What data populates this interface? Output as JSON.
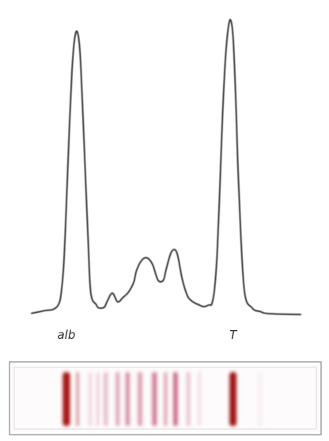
{
  "chart_data": {
    "type": "line",
    "title": "",
    "xlabel": "",
    "ylabel": "",
    "x_range": [
      0,
      100
    ],
    "y_range": [
      0,
      100
    ],
    "grid": false,
    "legend": "none",
    "series": [
      {
        "x": [
          0,
          5,
          8,
          10,
          11,
          12,
          13,
          14,
          15,
          16,
          17,
          18,
          19,
          21,
          22,
          24,
          25,
          27,
          28,
          30,
          32,
          34,
          36,
          38,
          39,
          41,
          43,
          45,
          47,
          49,
          50,
          52,
          54,
          56,
          58,
          60,
          62,
          64,
          66,
          67,
          68,
          69,
          70,
          71,
          72,
          73,
          74,
          75,
          76,
          77,
          79,
          82,
          85,
          88,
          100
        ],
        "y": [
          0.6,
          1.5,
          1.9,
          3.5,
          7.4,
          17.7,
          38.6,
          61.5,
          81.1,
          91.9,
          94.1,
          87.2,
          68.1,
          25.0,
          7.4,
          3.5,
          2.4,
          2.6,
          4.4,
          7.3,
          4.4,
          5.9,
          7.6,
          11.0,
          14.8,
          18.3,
          19.0,
          16.8,
          11.6,
          11.6,
          15.1,
          21.0,
          20.8,
          12.0,
          6.3,
          4.4,
          3.5,
          2.8,
          3.4,
          3.7,
          8.5,
          20.5,
          42.5,
          66.3,
          84.1,
          94.6,
          98.1,
          91.3,
          69.5,
          43.1,
          9.0,
          2.4,
          1.2,
          0.5,
          0.2
        ],
        "color": "#3a3a3a"
      }
    ],
    "peak_labels": [
      {
        "text": "alb",
        "x": 12.9
      },
      {
        "text": "T",
        "x": 74.9
      }
    ],
    "gel_strip": {
      "x_range": [
        0,
        100
      ],
      "bands": [
        {
          "x": 12.9,
          "width": 2.7,
          "intensity": 1.0,
          "color": "#a81818"
        },
        {
          "x": 17.1,
          "width": 0.9,
          "intensity": 0.55,
          "color": "#c04a5a"
        },
        {
          "x": 21.8,
          "width": 1.4,
          "intensity": 0.18,
          "color": "#e0a8bc"
        },
        {
          "x": 24.6,
          "width": 1.0,
          "intensity": 0.22,
          "color": "#d98aa4"
        },
        {
          "x": 27.6,
          "width": 1.6,
          "intensity": 0.3,
          "color": "#cf7a96"
        },
        {
          "x": 32.0,
          "width": 1.5,
          "intensity": 0.38,
          "color": "#c85f80"
        },
        {
          "x": 35.7,
          "width": 1.6,
          "intensity": 0.5,
          "color": "#c24f72"
        },
        {
          "x": 40.3,
          "width": 1.7,
          "intensity": 0.42,
          "color": "#c65a7b"
        },
        {
          "x": 45.7,
          "width": 1.8,
          "intensity": 0.58,
          "color": "#bd4468"
        },
        {
          "x": 49.8,
          "width": 1.3,
          "intensity": 0.4,
          "color": "#c7617f"
        },
        {
          "x": 53.5,
          "width": 1.7,
          "intensity": 0.65,
          "color": "#b93b60"
        },
        {
          "x": 58.3,
          "width": 1.4,
          "intensity": 0.28,
          "color": "#d47f99"
        },
        {
          "x": 62.4,
          "width": 1.2,
          "intensity": 0.15,
          "color": "#e3b0c0"
        },
        {
          "x": 74.9,
          "width": 2.6,
          "intensity": 1.0,
          "color": "#9e1414"
        },
        {
          "x": 85.0,
          "width": 1.8,
          "intensity": 0.06,
          "color": "#f0d8de"
        }
      ]
    }
  }
}
